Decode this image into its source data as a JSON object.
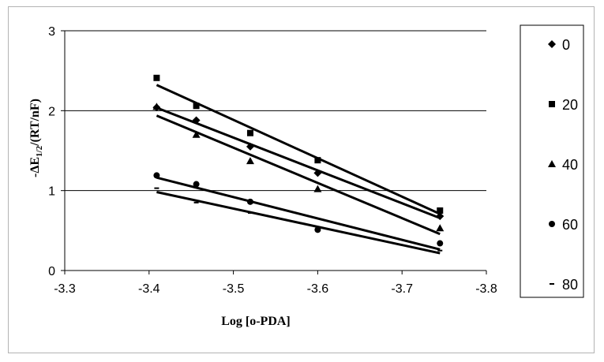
{
  "chart_data": {
    "type": "scatter",
    "title": "",
    "xlabel": "Log [o-PDA]",
    "ylabel": "-ΔE1/2/(RT/nF)",
    "ylabel_parts": {
      "pre": "-ΔE",
      "sub": "1/2",
      "post": "/(RT/nF)"
    },
    "xlim": [
      -3.3,
      -3.8
    ],
    "ylim": [
      0,
      3
    ],
    "x_ticks": [
      -3.3,
      -3.4,
      -3.5,
      -3.6,
      -3.7,
      -3.8
    ],
    "x_tick_labels": [
      "-3.3",
      "-3.4",
      "-3.5",
      "-3.6",
      "-3.7",
      "-3.8"
    ],
    "y_ticks": [
      0,
      1,
      2,
      3
    ],
    "y_tick_labels": [
      "0",
      "1",
      "2",
      "3"
    ],
    "grid": "horizontal",
    "legend_position": "right",
    "trendlines": true,
    "series": [
      {
        "name": "0",
        "marker": "diamond",
        "x": [
          -3.409,
          -3.456,
          -3.52,
          -3.6,
          -3.745
        ],
        "y": [
          2.04,
          1.88,
          1.55,
          1.22,
          0.68
        ]
      },
      {
        "name": "20",
        "marker": "square",
        "x": [
          -3.409,
          -3.456,
          -3.52,
          -3.6,
          -3.745
        ],
        "y": [
          2.41,
          2.06,
          1.72,
          1.38,
          0.75
        ]
      },
      {
        "name": "40",
        "marker": "triangle",
        "x": [
          -3.409,
          -3.456,
          -3.52,
          -3.6,
          -3.745
        ],
        "y": [
          2.05,
          1.7,
          1.37,
          1.02,
          0.53
        ]
      },
      {
        "name": "60",
        "marker": "circle",
        "x": [
          -3.409,
          -3.456,
          -3.52,
          -3.6,
          -3.745
        ],
        "y": [
          1.19,
          1.08,
          0.86,
          0.51,
          0.34
        ]
      },
      {
        "name": "80",
        "marker": "dash",
        "x": [
          -3.409,
          -3.456,
          -3.52,
          -3.6,
          -3.745
        ],
        "y": [
          1.03,
          0.85,
          0.72,
          0.5,
          0.25
        ]
      }
    ]
  }
}
